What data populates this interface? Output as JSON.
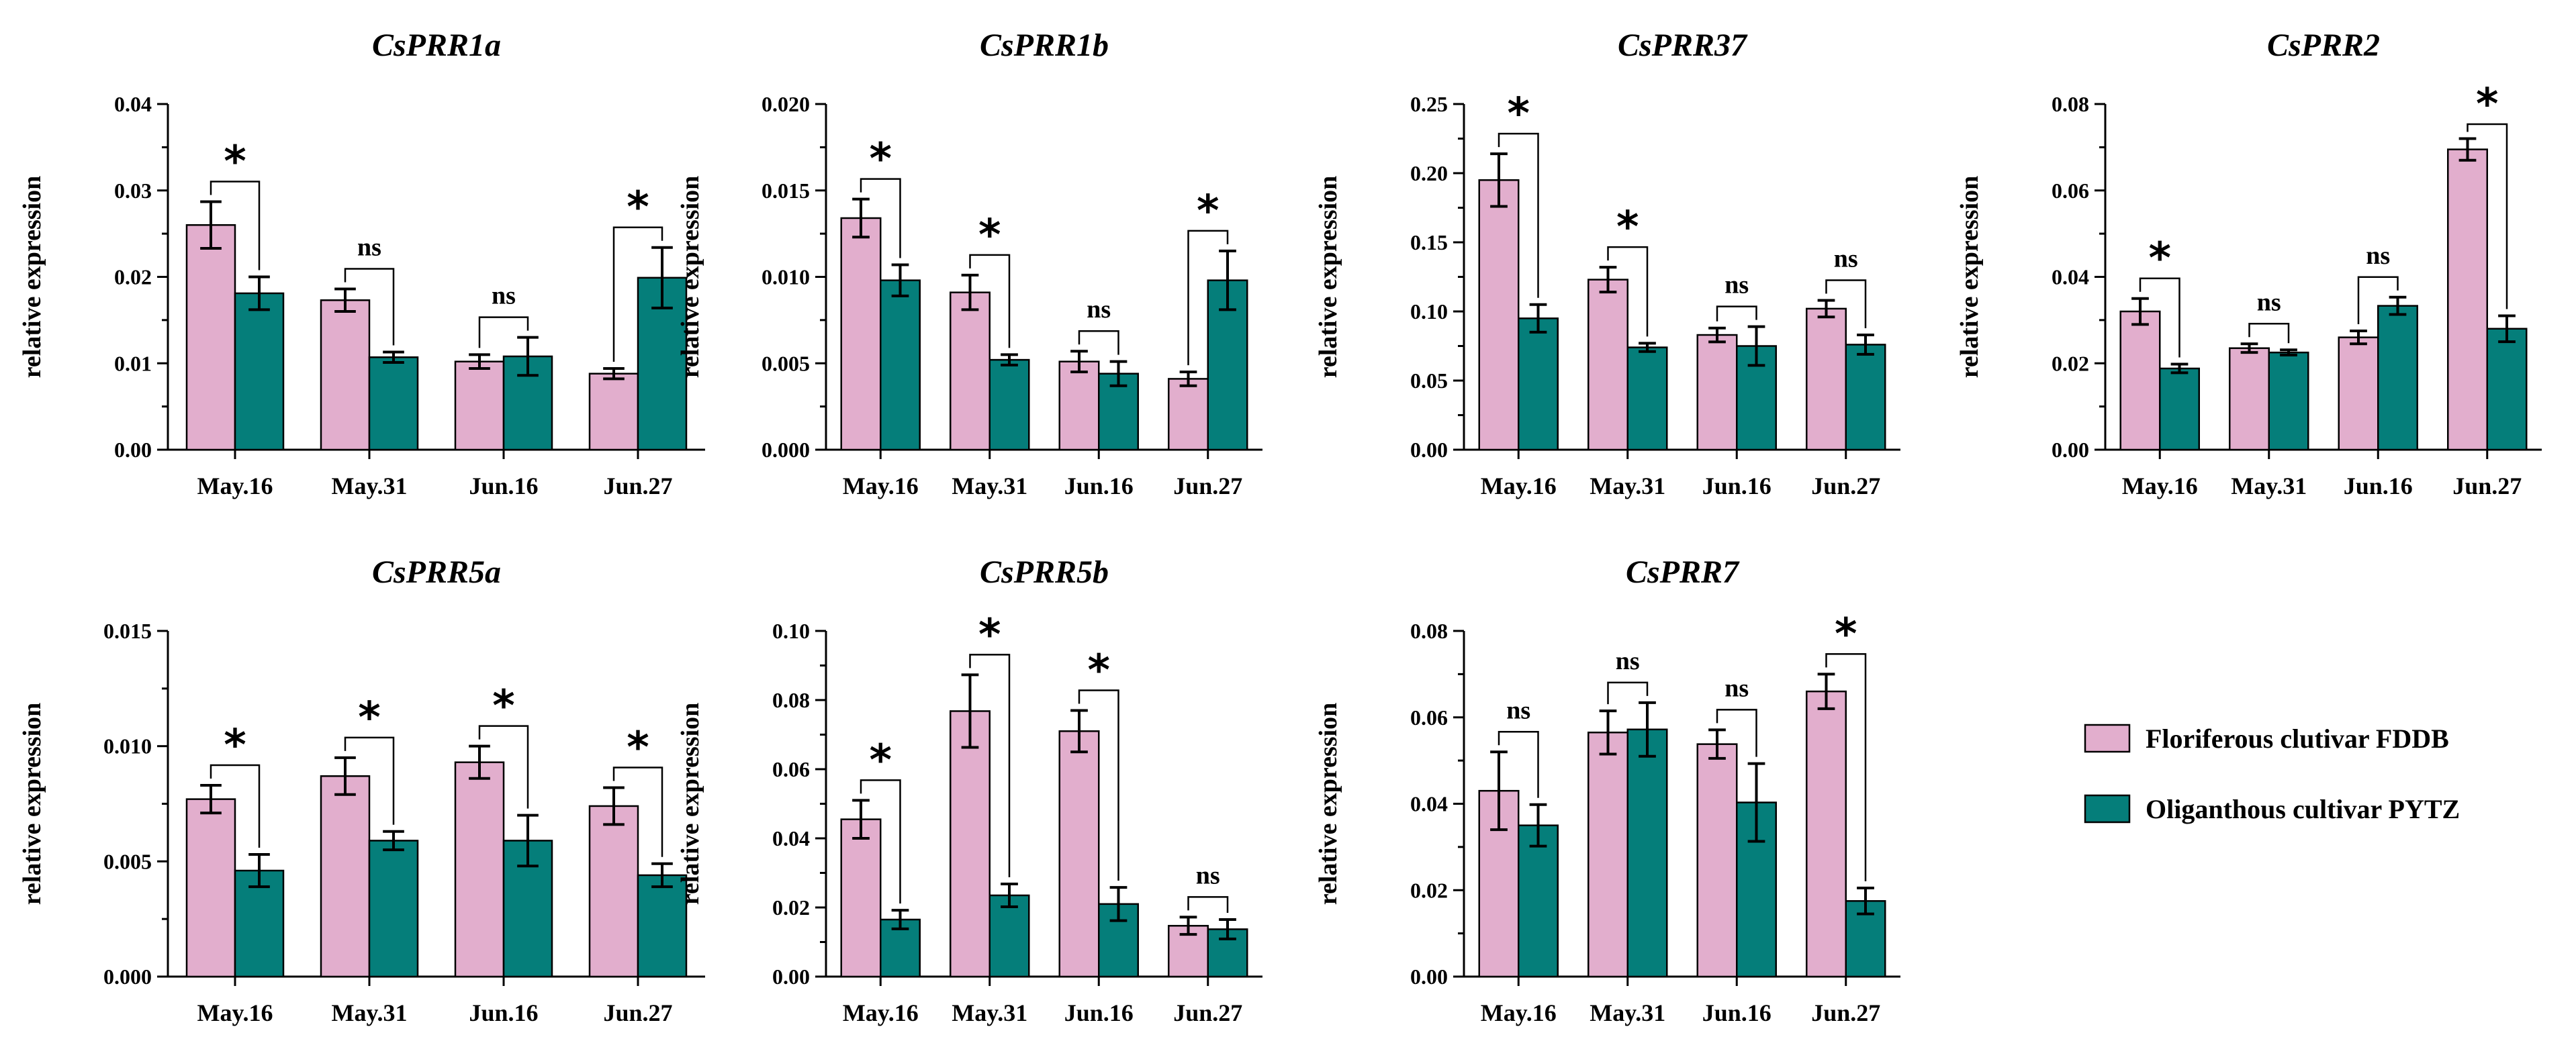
{
  "colors": {
    "series1": "#e2aecd",
    "series2": "#057e7a",
    "axis": "#000000"
  },
  "legend": [
    {
      "label": "Floriferous clutivar FDDB",
      "color": "#e2aecd"
    },
    {
      "label": "Oliganthous cultivar PYTZ",
      "color": "#057e7a"
    }
  ],
  "chart_data": [
    {
      "type": "bar",
      "title": "CsPRR1a",
      "ylabel": "relative expression",
      "categories": [
        "May.16",
        "May.31",
        "Jun.16",
        "Jun.27"
      ],
      "ylim": [
        0,
        0.04
      ],
      "yticks": [
        "0.00",
        "0.01",
        "0.02",
        "0.03",
        "0.04"
      ],
      "series": [
        {
          "name": "Floriferous clutivar FDDB",
          "values": [
            0.026,
            0.0173,
            0.0102,
            0.0088
          ],
          "errors": [
            0.0027,
            0.0013,
            0.0008,
            0.0006
          ]
        },
        {
          "name": "Oliganthous cultivar PYTZ",
          "values": [
            0.0181,
            0.0107,
            0.0108,
            0.0199
          ],
          "errors": [
            0.0019,
            0.0006,
            0.0022,
            0.0035
          ]
        }
      ],
      "significance": [
        "*",
        "ns",
        "ns",
        "*"
      ]
    },
    {
      "type": "bar",
      "title": "CsPRR1b",
      "ylabel": "relative expression",
      "categories": [
        "May.16",
        "May.31",
        "Jun.16",
        "Jun.27"
      ],
      "ylim": [
        0,
        0.02
      ],
      "yticks": [
        "0.000",
        "0.005",
        "0.010",
        "0.015",
        "0.020"
      ],
      "series": [
        {
          "name": "Floriferous clutivar FDDB",
          "values": [
            0.0134,
            0.0091,
            0.0051,
            0.0041
          ],
          "errors": [
            0.0011,
            0.001,
            0.0006,
            0.0004
          ]
        },
        {
          "name": "Oliganthous cultivar PYTZ",
          "values": [
            0.0098,
            0.0052,
            0.0044,
            0.0098
          ],
          "errors": [
            0.0009,
            0.0003,
            0.0007,
            0.0017
          ]
        }
      ],
      "significance": [
        "*",
        "*",
        "ns",
        "*"
      ]
    },
    {
      "type": "bar",
      "title": "CsPRR37",
      "ylabel": "relative expression",
      "categories": [
        "May.16",
        "May.31",
        "Jun.16",
        "Jun.27"
      ],
      "ylim": [
        0,
        0.25
      ],
      "yticks": [
        "0.00",
        "0.05",
        "0.10",
        "0.15",
        "0.20",
        "0.25"
      ],
      "series": [
        {
          "name": "Floriferous clutivar FDDB",
          "values": [
            0.195,
            0.123,
            0.083,
            0.102
          ],
          "errors": [
            0.019,
            0.009,
            0.005,
            0.006
          ]
        },
        {
          "name": "Oliganthous cultivar PYTZ",
          "values": [
            0.095,
            0.074,
            0.075,
            0.076
          ],
          "errors": [
            0.01,
            0.003,
            0.014,
            0.007
          ]
        }
      ],
      "significance": [
        "*",
        "*",
        "ns",
        "ns"
      ]
    },
    {
      "type": "bar",
      "title": "CsPRR2",
      "ylabel": "relative expression",
      "categories": [
        "May.16",
        "May.31",
        "Jun.16",
        "Jun.27"
      ],
      "ylim": [
        0,
        0.08
      ],
      "yticks": [
        "0.00",
        "0.02",
        "0.04",
        "0.06",
        "0.08"
      ],
      "series": [
        {
          "name": "Floriferous clutivar FDDB",
          "values": [
            0.032,
            0.0235,
            0.026,
            0.0695
          ],
          "errors": [
            0.003,
            0.001,
            0.0015,
            0.0025
          ]
        },
        {
          "name": "Oliganthous cultivar PYTZ",
          "values": [
            0.0188,
            0.0225,
            0.0333,
            0.028
          ],
          "errors": [
            0.001,
            0.0006,
            0.002,
            0.003
          ]
        }
      ],
      "significance": [
        "*",
        "ns",
        "ns",
        "*"
      ]
    },
    {
      "type": "bar",
      "title": "CsPRR5a",
      "ylabel": "relative expression",
      "categories": [
        "May.16",
        "May.31",
        "Jun.16",
        "Jun.27"
      ],
      "ylim": [
        0,
        0.015
      ],
      "yticks": [
        "0.000",
        "0.005",
        "0.010",
        "0.015"
      ],
      "series": [
        {
          "name": "Floriferous clutivar FDDB",
          "values": [
            0.0077,
            0.0087,
            0.0093,
            0.0074
          ],
          "errors": [
            0.0006,
            0.0008,
            0.0007,
            0.0008
          ]
        },
        {
          "name": "Oliganthous cultivar PYTZ",
          "values": [
            0.0046,
            0.0059,
            0.0059,
            0.0044
          ],
          "errors": [
            0.0007,
            0.0004,
            0.0011,
            0.0005
          ]
        }
      ],
      "significance": [
        "*",
        "*",
        "*",
        "*"
      ]
    },
    {
      "type": "bar",
      "title": "CsPRR5b",
      "ylabel": "relative expression",
      "categories": [
        "May.16",
        "May.31",
        "Jun.16",
        "Jun.27"
      ],
      "ylim": [
        0,
        0.1
      ],
      "yticks": [
        "0.00",
        "0.02",
        "0.04",
        "0.06",
        "0.08",
        "0.10"
      ],
      "series": [
        {
          "name": "Floriferous clutivar FDDB",
          "values": [
            0.0455,
            0.0768,
            0.071,
            0.0147
          ],
          "errors": [
            0.0055,
            0.0105,
            0.006,
            0.0025
          ]
        },
        {
          "name": "Oliganthous cultivar PYTZ",
          "values": [
            0.0165,
            0.0235,
            0.021,
            0.0137
          ],
          "errors": [
            0.0027,
            0.0033,
            0.0048,
            0.0028
          ]
        }
      ],
      "significance": [
        "*",
        "*",
        "*",
        "ns"
      ]
    },
    {
      "type": "bar",
      "title": "CsPRR7",
      "ylabel": "relative expression",
      "categories": [
        "May.16",
        "May.31",
        "Jun.16",
        "Jun.27"
      ],
      "ylim": [
        0,
        0.08
      ],
      "yticks": [
        "0.00",
        "0.02",
        "0.04",
        "0.06",
        "0.08"
      ],
      "series": [
        {
          "name": "Floriferous clutivar FDDB",
          "values": [
            0.043,
            0.0565,
            0.0538,
            0.066
          ],
          "errors": [
            0.009,
            0.005,
            0.0033,
            0.004
          ]
        },
        {
          "name": "Oliganthous cultivar PYTZ",
          "values": [
            0.035,
            0.0572,
            0.0403,
            0.0175
          ],
          "errors": [
            0.0048,
            0.0062,
            0.009,
            0.003
          ]
        }
      ],
      "significance": [
        "ns",
        "ns",
        "ns",
        "*"
      ]
    }
  ]
}
